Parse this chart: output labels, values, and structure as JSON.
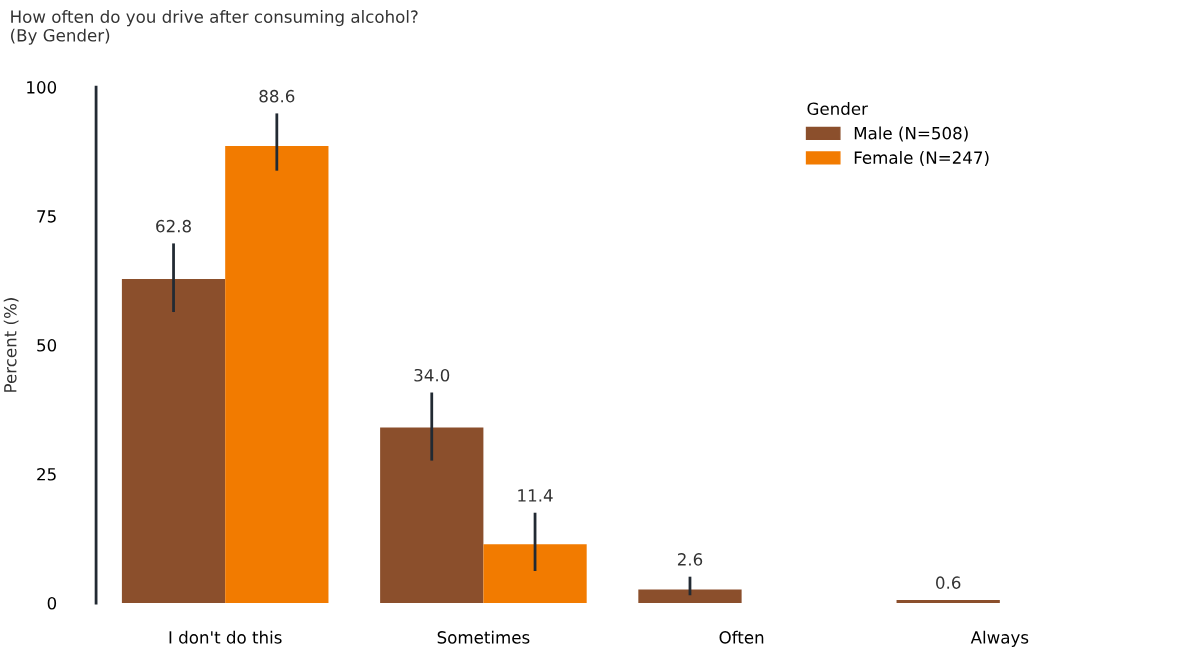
{
  "chart_data": {
    "type": "bar",
    "title": "How often do you drive after consuming alcohol?\n(By Gender)",
    "ylabel": "Percent (%)",
    "legend_title": "Gender",
    "categories": [
      "I don't do this",
      "Sometimes",
      "Often",
      "Always"
    ],
    "series": [
      {
        "name": "Male (N=508)",
        "color": "#8b4f2c",
        "values": [
          62.8,
          34.0,
          2.6,
          0.6
        ],
        "errors": [
          [
            56.4,
            69.7
          ],
          [
            27.6,
            40.8
          ],
          [
            1.5,
            5.1
          ],
          null
        ],
        "value_labels": [
          "62.8",
          "34.0",
          "2.6",
          "0.6"
        ]
      },
      {
        "name": "Female (N=247)",
        "color": "#f27b00",
        "values": [
          88.6,
          11.4,
          null,
          null
        ],
        "errors": [
          [
            83.8,
            94.9
          ],
          [
            6.2,
            17.5
          ],
          null,
          null
        ],
        "value_labels": [
          "88.6",
          "11.4",
          null,
          null
        ]
      }
    ],
    "ylim": [
      0,
      100
    ],
    "yticks": [
      0,
      25,
      50,
      75,
      100
    ],
    "legend": "top right",
    "grid": false
  }
}
